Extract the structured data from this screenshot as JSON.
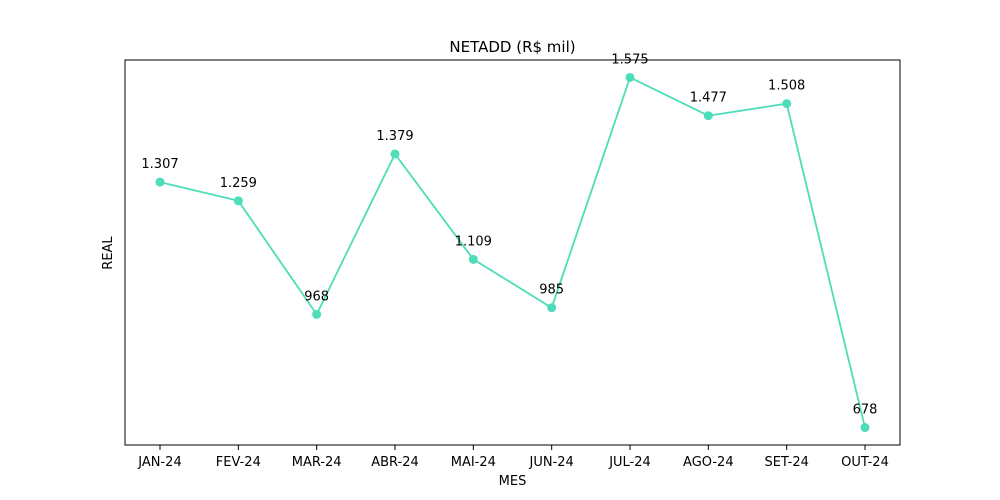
{
  "chart_data": {
    "type": "line",
    "title": "NETADD (R$ mil)",
    "xlabel": "MES",
    "ylabel": "REAL",
    "categories": [
      "JAN-24",
      "FEV-24",
      "MAR-24",
      "ABR-24",
      "MAI-24",
      "JUN-24",
      "JUL-24",
      "AGO-24",
      "SET-24",
      "OUT-24"
    ],
    "series": [
      {
        "values": [
          1307,
          1259,
          968,
          1379,
          1109,
          985,
          1575,
          1477,
          1508,
          678
        ],
        "labels": [
          "1.307",
          "1.259",
          "968",
          "1.379",
          "1.109",
          "985",
          "1.575",
          "1.477",
          "1.508",
          "678"
        ],
        "color": "#4dddb8"
      }
    ],
    "ylim": [
      633.2,
      1619.8
    ],
    "y_ticks_shown": false,
    "grid": false,
    "legend": "none"
  }
}
